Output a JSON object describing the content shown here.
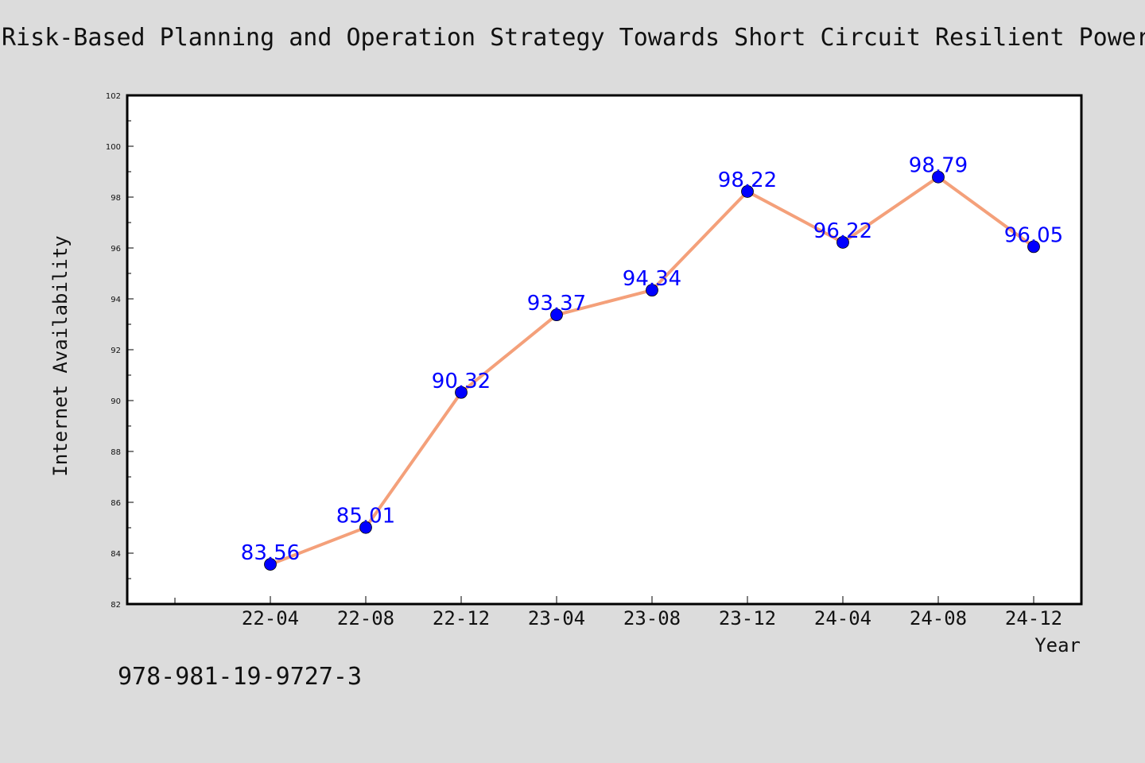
{
  "page": {
    "background": "#dcdcdc",
    "footer_text": "978-981-19-9727-3"
  },
  "chart_data": {
    "type": "line",
    "title": "Risk-Based Planning and Operation Strategy Towards Short Circuit Resilient Power",
    "xlabel": "Year",
    "ylabel": "Internet Availability",
    "categories": [
      "22-04",
      "22-08",
      "22-12",
      "23-04",
      "23-08",
      "23-12",
      "24-04",
      "24-08",
      "24-12"
    ],
    "series": [
      {
        "values": [
          83.56,
          85.01,
          90.32,
          93.37,
          94.34,
          98.22,
          96.22,
          98.79,
          96.05
        ],
        "line_color": "#f4a07a",
        "marker_color": "#0000ff"
      }
    ],
    "data_labels": [
      "83.56",
      "85.01",
      "90.32",
      "93.37",
      "94.34",
      "98.22",
      "96.22",
      "98.79",
      "96.05"
    ],
    "ylim": [
      82,
      102
    ],
    "y_ticks": [
      "82",
      "84",
      "86",
      "88",
      "90",
      "92",
      "94",
      "96",
      "98",
      "100",
      "102"
    ],
    "grid": false,
    "legend": "none",
    "plot_background": "#ffffff",
    "label_color": "#0000ff"
  }
}
